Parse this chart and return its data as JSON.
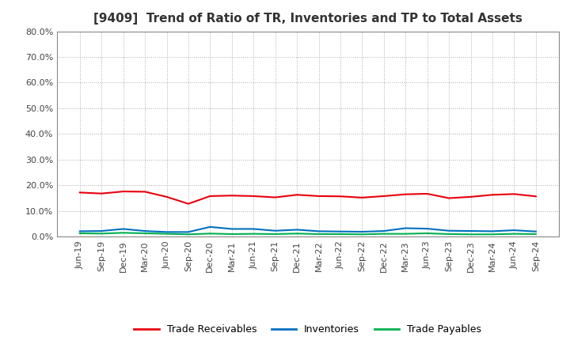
{
  "title": "[9409]  Trend of Ratio of TR, Inventories and TP to Total Assets",
  "x_labels": [
    "Jun-19",
    "Sep-19",
    "Dec-19",
    "Mar-20",
    "Jun-20",
    "Sep-20",
    "Dec-20",
    "Mar-21",
    "Jun-21",
    "Sep-21",
    "Dec-21",
    "Mar-22",
    "Jun-22",
    "Sep-22",
    "Dec-22",
    "Mar-23",
    "Jun-23",
    "Sep-23",
    "Dec-23",
    "Mar-24",
    "Jun-24",
    "Sep-24"
  ],
  "trade_receivables": [
    0.172,
    0.168,
    0.176,
    0.175,
    0.155,
    0.128,
    0.158,
    0.16,
    0.158,
    0.153,
    0.163,
    0.158,
    0.157,
    0.152,
    0.158,
    0.165,
    0.167,
    0.15,
    0.155,
    0.163,
    0.166,
    0.157
  ],
  "inventories": [
    0.021,
    0.022,
    0.03,
    0.022,
    0.018,
    0.018,
    0.038,
    0.03,
    0.03,
    0.023,
    0.027,
    0.021,
    0.02,
    0.019,
    0.022,
    0.033,
    0.031,
    0.023,
    0.022,
    0.021,
    0.025,
    0.02
  ],
  "trade_payables": [
    0.013,
    0.012,
    0.015,
    0.013,
    0.011,
    0.009,
    0.012,
    0.01,
    0.011,
    0.01,
    0.012,
    0.01,
    0.01,
    0.009,
    0.011,
    0.011,
    0.013,
    0.01,
    0.009,
    0.009,
    0.011,
    0.01
  ],
  "ylim": [
    0.0,
    0.8
  ],
  "yticks": [
    0.0,
    0.1,
    0.2,
    0.3,
    0.4,
    0.5,
    0.6,
    0.7,
    0.8
  ],
  "ytick_labels": [
    "0.0%",
    "10.0%",
    "20.0%",
    "30.0%",
    "40.0%",
    "50.0%",
    "60.0%",
    "70.0%",
    "80.0%"
  ],
  "line_colors": {
    "trade_receivables": "#e8000d",
    "inventories": "#0070c0",
    "trade_payables": "#00b050"
  },
  "legend_labels": [
    "Trade Receivables",
    "Inventories",
    "Trade Payables"
  ],
  "background_color": "#ffffff",
  "grid_color": "#aaaaaa",
  "title_fontsize": 11,
  "tick_fontsize": 8,
  "legend_fontsize": 9
}
